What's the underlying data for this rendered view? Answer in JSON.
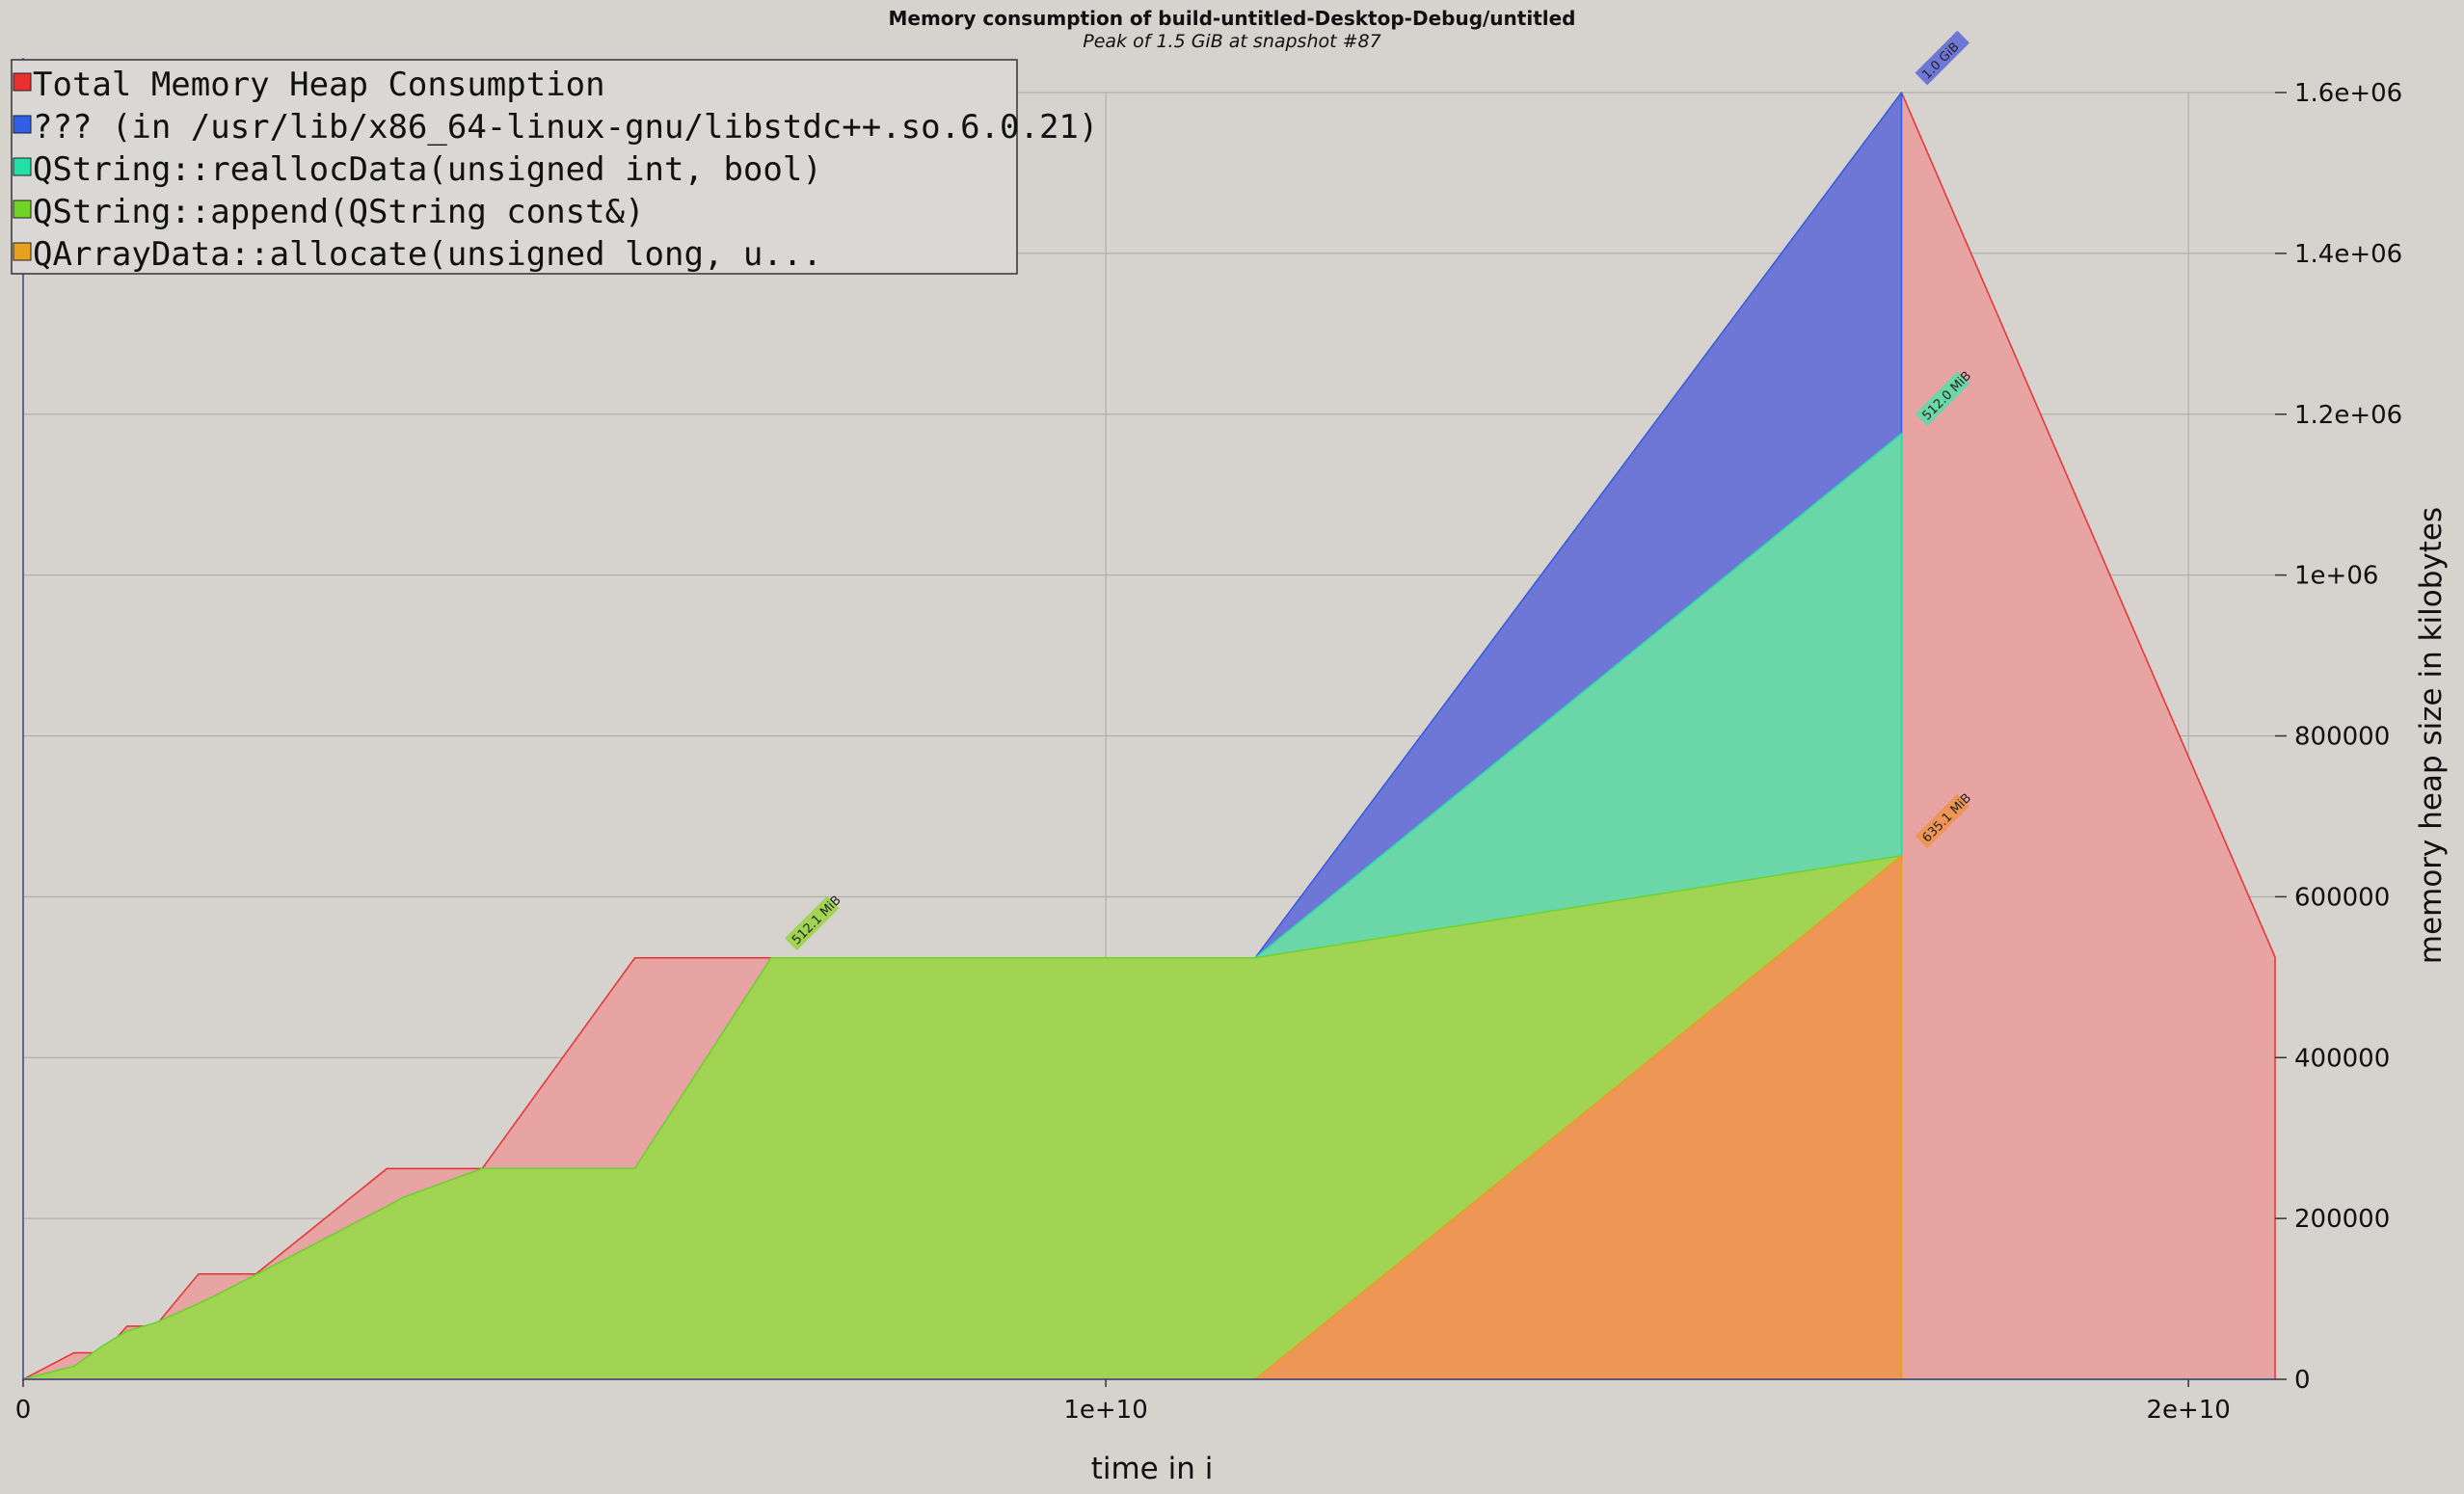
{
  "chart_data": {
    "type": "area",
    "title": "Memory consumption of build-untitled-Desktop-Debug/untitled",
    "subtitle": "Peak of 1.5 GiB at snapshot #87",
    "xlabel": "time in i",
    "ylabel": "memory heap size in kilobytes",
    "xlim": [
      0,
      20800000000
    ],
    "ylim": [
      0,
      1600000
    ],
    "x_ticks": [
      {
        "value": 0,
        "label": "0"
      },
      {
        "value": 10000000000,
        "label": "1e+10"
      },
      {
        "value": 20000000000,
        "label": "2e+10"
      }
    ],
    "y_ticks": [
      {
        "value": 0,
        "label": "0"
      },
      {
        "value": 200000,
        "label": "200000"
      },
      {
        "value": 400000,
        "label": "400000"
      },
      {
        "value": 600000,
        "label": "600000"
      },
      {
        "value": 800000,
        "label": "800000"
      },
      {
        "value": 1000000,
        "label": "1e+06"
      },
      {
        "value": 1200000,
        "label": "1.2e+06"
      },
      {
        "value": 1400000,
        "label": "1.4e+06"
      },
      {
        "value": 1600000,
        "label": "1.6e+06"
      }
    ],
    "grid": true,
    "legend_position": "top-left",
    "x": [
      0,
      470000000,
      740000000,
      960000000,
      1220000000,
      1620000000,
      1790000000,
      2150000000,
      3360000000,
      3510000000,
      4240000000,
      5650000000,
      6910000000,
      11060000000,
      11380000000,
      17350000000,
      17350000000,
      20800000000
    ],
    "series": [
      {
        "name": "Total Memory Heap Consumption",
        "color": "#e8a3a3",
        "line_color": "#e83030",
        "values": [
          0,
          33000,
          33000,
          66000,
          66000,
          131000,
          131000,
          131000,
          262000,
          262000,
          262000,
          524000,
          524000,
          524000,
          524000,
          1600000,
          1600000,
          525000
        ]
      },
      {
        "name": "??? (in /usr/lib/x86_64-linux-gnu/libstdc++.so.6.0.21)",
        "color": "#6f77d6",
        "line_color": "#2f5fe8",
        "values": [
          0,
          16000,
          42000,
          60000,
          70000,
          94000,
          105000,
          130000,
          215000,
          226000,
          262000,
          262000,
          524000,
          524000,
          524000,
          1600000,
          0,
          0
        ]
      },
      {
        "name": "QString::reallocData(unsigned int, bool)",
        "color": "#6bd6a7",
        "line_color": "#22e0a8",
        "values": [
          0,
          16000,
          42000,
          60000,
          70000,
          94000,
          105000,
          130000,
          215000,
          226000,
          262000,
          262000,
          524000,
          524000,
          524000,
          1176000,
          0,
          0
        ]
      },
      {
        "name": "QString::append(QString const&)",
        "color": "#a2d454",
        "line_color": "#6fd424",
        "values": [
          0,
          16000,
          42000,
          60000,
          70000,
          94000,
          105000,
          130000,
          215000,
          226000,
          262000,
          262000,
          524000,
          524000,
          524000,
          651000,
          0,
          0
        ]
      },
      {
        "name": "QArrayData::allocate(unsigned long, u...",
        "color": "#ee9655",
        "line_color": "#e8a020",
        "values": [
          0,
          0,
          0,
          0,
          0,
          0,
          0,
          0,
          0,
          0,
          0,
          0,
          0,
          0,
          0,
          651000,
          0,
          0
        ]
      }
    ],
    "annotations": [
      {
        "text": "512.1 MiB",
        "x": 6910000000,
        "y": 524000,
        "color": "#a2d454"
      },
      {
        "text": "512.0 MiB",
        "x": 17350000000,
        "y": 1176000,
        "color": "#6bd6a7"
      },
      {
        "text": "635.1 MiB",
        "x": 17350000000,
        "y": 651000,
        "color": "#ee9655"
      },
      {
        "text": "1.0 GiB",
        "x": 17350000000,
        "y": 1600000,
        "color": "#6f77d6"
      }
    ]
  }
}
